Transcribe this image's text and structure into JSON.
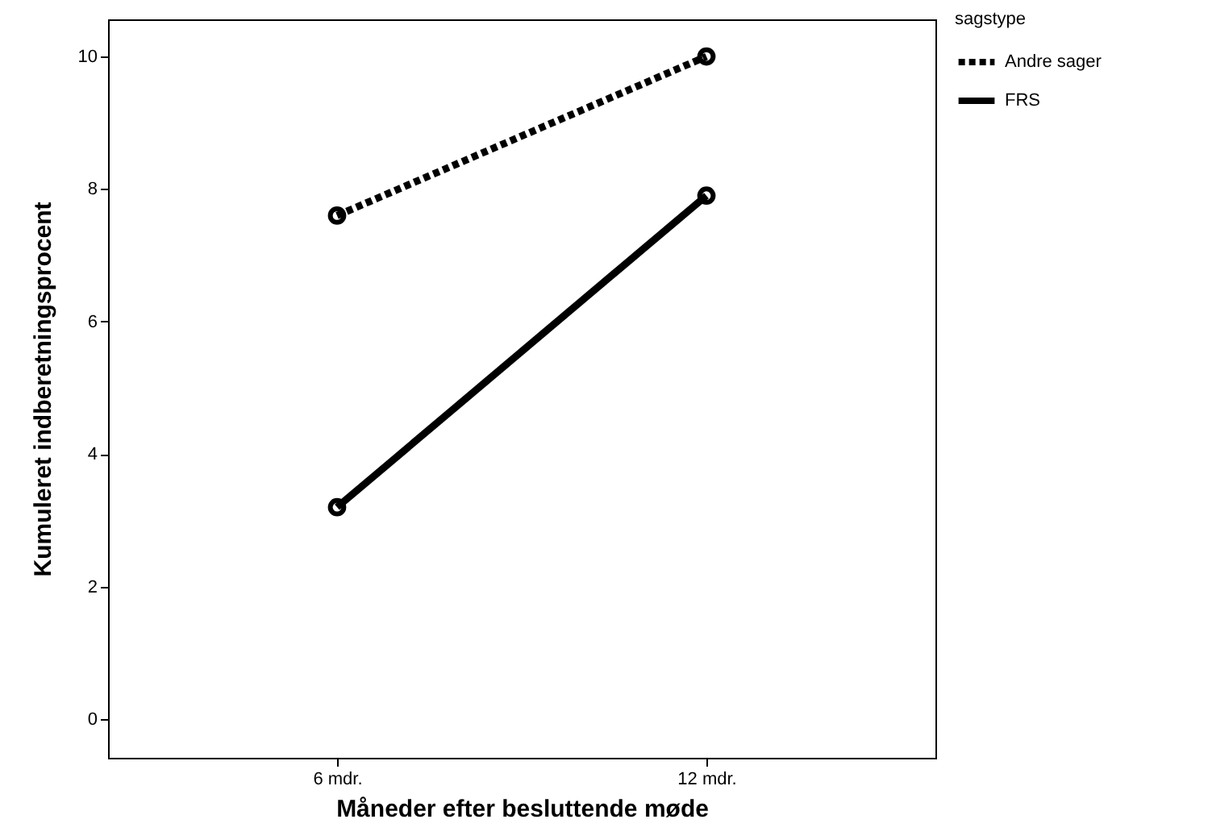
{
  "chart_data": {
    "type": "line",
    "xlabel": "Måneder efter besluttende møde",
    "ylabel": "Kumuleret indberetningsprocent",
    "legend_title": "sagstype",
    "categories": [
      "6 mdr.",
      "12 mdr."
    ],
    "series": [
      {
        "name": "Andre sager",
        "color": "#000000",
        "line_style": "dotted",
        "values": [
          7.6,
          10.0
        ]
      },
      {
        "name": "FRS",
        "color": "#000000",
        "line_style": "solid",
        "values": [
          3.2,
          7.9
        ]
      }
    ],
    "ylim": [
      -0.58,
      10.56
    ],
    "yticks": [
      0,
      2,
      4,
      6,
      8,
      10
    ],
    "grid": false,
    "legend": "top right",
    "marker": "circle"
  }
}
